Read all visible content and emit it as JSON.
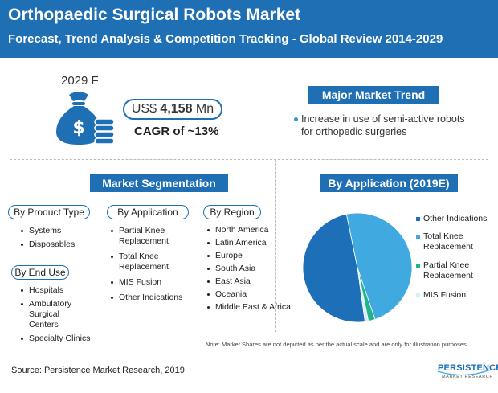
{
  "header": {
    "title": "Orthopaedic Surgical Robots Market",
    "subtitle": "Forecast, Trend Analysis & Competition Tracking - Global Review 2014-2029"
  },
  "forecast": {
    "year_label": "2029 F",
    "value_prefix": "US$ ",
    "value_amount": "4,158",
    "value_suffix": " Mn",
    "cagr": "CAGR of ~13%",
    "icon": "money-bag-icon"
  },
  "trend": {
    "title": "Major Market Trend",
    "items": [
      "Increase in use of semi-active robots for orthopedic surgeries"
    ]
  },
  "segmentation": {
    "title": "Market Segmentation",
    "product_type": {
      "label": "By Product Type",
      "items": [
        "Systems",
        "Disposables"
      ]
    },
    "application": {
      "label": "By Application",
      "items": [
        "Partial Knee Replacement",
        "Total Knee Replacement",
        "MIS Fusion",
        "Other Indications"
      ]
    },
    "region": {
      "label": "By Region",
      "items": [
        "North America",
        "Latin America",
        "Europe",
        "South Asia",
        "East Asia",
        "Oceania",
        "Middle East & Africa"
      ]
    },
    "end_use": {
      "label": "By End Use",
      "items": [
        "Hospitals",
        "Ambulatory Surgical Centers",
        "Specialty Clinics"
      ]
    }
  },
  "chart_data": {
    "type": "pie",
    "title": "By Application (2019E)",
    "categories": [
      "Other Indications",
      "Total Knee Replacement",
      "Partial Knee Replacement",
      "MIS Fusion"
    ],
    "values": [
      49,
      48,
      2,
      1
    ],
    "colors": [
      "#1d6fb8",
      "#3fa9e0",
      "#22b38a",
      "#d9eef8"
    ],
    "legend_position": "right"
  },
  "note": "Note: Market Shares are not depicted as per the actual scale and are only for illustration purposes",
  "source": "Source: Persistence Market Research, 2019",
  "logo": {
    "name": "PERSISTENCE",
    "tagline": "MARKET RESEARCH"
  }
}
